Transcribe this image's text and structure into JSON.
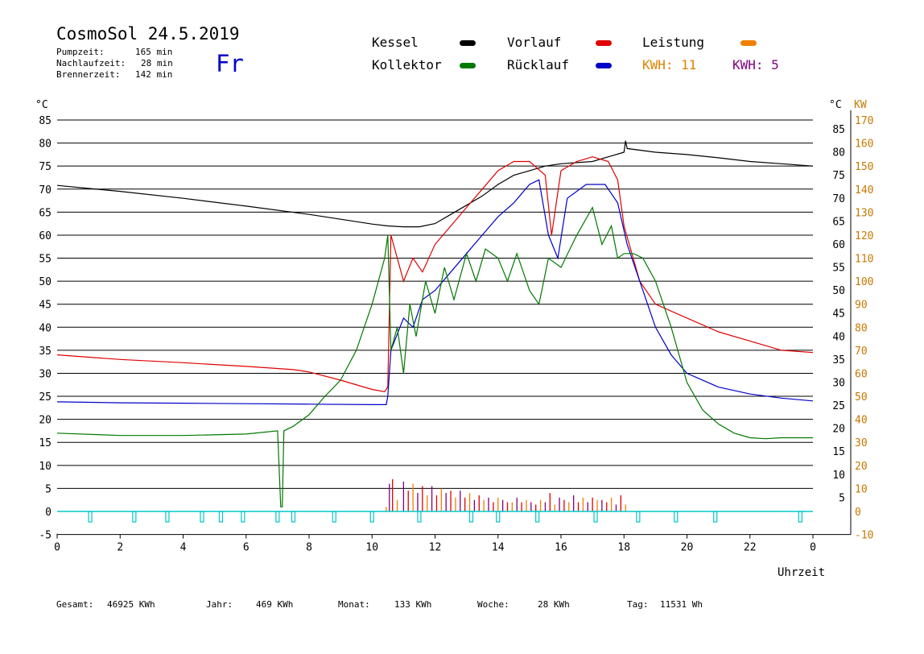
{
  "header": {
    "title": "CosmoSol 24.5.2019",
    "day": "Fr",
    "stats": [
      {
        "label": "Pumpzeit:",
        "value": "165 min"
      },
      {
        "label": "Nachlaufzeit:",
        "value": "28 min"
      },
      {
        "label": "Brennerzeit:",
        "value": "142 min"
      }
    ]
  },
  "legend": {
    "kessel": "Kessel",
    "vorlauf": "Vorlauf",
    "leistung": "Leistung",
    "kollektor": "Kollektor",
    "ruecklauf": "Rücklauf",
    "kwh1": "KWH: 11",
    "kwh2": "KWH: 5"
  },
  "colors": {
    "kessel": "#000000",
    "vorlauf": "#e00000",
    "leistung": "#f08000",
    "kollektor": "#007800",
    "ruecklauf": "#0000c8",
    "purple": "#800080",
    "pump": "#00c8c8",
    "right_kw": "#c87800"
  },
  "footer": [
    {
      "label": "Gesamt:",
      "value": "46925 KWh"
    },
    {
      "label": "Jahr:",
      "value": "469 KWh"
    },
    {
      "label": "Monat:",
      "value": "133 KWh"
    },
    {
      "label": "Woche:",
      "value": "28 KWh"
    },
    {
      "label": "Tag:",
      "value": "11531 Wh"
    }
  ],
  "chart_data": {
    "type": "line",
    "xlabel": "Uhrzeit",
    "left_unit": "°C",
    "right_unit_c": "°C",
    "right_unit_kw": "KW",
    "x_range": [
      0,
      24
    ],
    "y_range": [
      -5,
      85
    ],
    "kw_range": [
      -10,
      170
    ],
    "x_ticks": [
      "0",
      "2",
      "4",
      "6",
      "8",
      "10",
      "12",
      "14",
      "16",
      "18",
      "20",
      "22",
      "0"
    ],
    "left_ticks": [
      85,
      80,
      75,
      70,
      65,
      60,
      55,
      50,
      45,
      40,
      35,
      30,
      25,
      20,
      15,
      10,
      5,
      0,
      -5
    ],
    "right_ticks_c": [
      85,
      80,
      75,
      70,
      65,
      60,
      55,
      50,
      45,
      40,
      35,
      30,
      25,
      20,
      15,
      10,
      5
    ],
    "right_ticks_kw": [
      170,
      160,
      150,
      140,
      130,
      120,
      110,
      100,
      90,
      80,
      70,
      60,
      50,
      40,
      30,
      20,
      10,
      0,
      -10
    ],
    "gridlines": [
      85,
      80,
      75,
      70,
      65,
      60,
      55,
      50,
      45,
      40,
      35,
      30,
      25,
      20,
      15,
      10,
      5,
      0
    ],
    "series": [
      {
        "name": "Kessel",
        "key": "kessel",
        "points": [
          [
            0,
            70.8
          ],
          [
            2,
            69.5
          ],
          [
            4,
            68
          ],
          [
            6,
            66.3
          ],
          [
            8,
            64.5
          ],
          [
            10,
            62.4
          ],
          [
            10.5,
            62
          ],
          [
            11,
            61.8
          ],
          [
            11.5,
            61.8
          ],
          [
            12,
            62.5
          ],
          [
            12.5,
            64.5
          ],
          [
            13,
            66.5
          ],
          [
            13.5,
            68.5
          ],
          [
            14,
            71
          ],
          [
            14.5,
            73
          ],
          [
            15,
            74
          ],
          [
            15.5,
            75
          ],
          [
            16,
            75.5
          ],
          [
            17,
            76
          ],
          [
            17.5,
            77
          ],
          [
            18,
            78
          ],
          [
            18.05,
            80.5
          ],
          [
            18.1,
            78.8
          ],
          [
            19,
            78
          ],
          [
            20,
            77.5
          ],
          [
            21,
            76.8
          ],
          [
            22,
            76
          ],
          [
            23,
            75.5
          ],
          [
            24,
            75
          ]
        ]
      },
      {
        "name": "Vorlauf",
        "key": "vorlauf",
        "points": [
          [
            0,
            34
          ],
          [
            2,
            33
          ],
          [
            4,
            32.3
          ],
          [
            6,
            31.5
          ],
          [
            7.5,
            30.8
          ],
          [
            8,
            30.3
          ],
          [
            9,
            28.5
          ],
          [
            10,
            26.5
          ],
          [
            10.4,
            26
          ],
          [
            10.5,
            27
          ],
          [
            10.6,
            60
          ],
          [
            10.8,
            55
          ],
          [
            11,
            50
          ],
          [
            11.3,
            55
          ],
          [
            11.6,
            52
          ],
          [
            12,
            58
          ],
          [
            12.5,
            62
          ],
          [
            13,
            66
          ],
          [
            13.5,
            70
          ],
          [
            14,
            74
          ],
          [
            14.5,
            76
          ],
          [
            15,
            76
          ],
          [
            15.5,
            73
          ],
          [
            15.7,
            60
          ],
          [
            16,
            74
          ],
          [
            16.5,
            76
          ],
          [
            17,
            77
          ],
          [
            17.5,
            76
          ],
          [
            17.8,
            72
          ],
          [
            18,
            62
          ],
          [
            18.5,
            50
          ],
          [
            19,
            45
          ],
          [
            20,
            42
          ],
          [
            21,
            39
          ],
          [
            22,
            37
          ],
          [
            23,
            35
          ],
          [
            24,
            34.5
          ]
        ]
      },
      {
        "name": "Rücklauf",
        "key": "ruecklauf",
        "points": [
          [
            0,
            23.8
          ],
          [
            2,
            23.6
          ],
          [
            4,
            23.5
          ],
          [
            6,
            23.4
          ],
          [
            8,
            23.3
          ],
          [
            10,
            23.2
          ],
          [
            10.45,
            23.2
          ],
          [
            10.5,
            25
          ],
          [
            10.6,
            35
          ],
          [
            11,
            42
          ],
          [
            11.3,
            40
          ],
          [
            11.6,
            46
          ],
          [
            12,
            48
          ],
          [
            12.5,
            52
          ],
          [
            13,
            56
          ],
          [
            13.5,
            60
          ],
          [
            14,
            64
          ],
          [
            14.5,
            67
          ],
          [
            15,
            71
          ],
          [
            15.3,
            72
          ],
          [
            15.6,
            60
          ],
          [
            15.9,
            55
          ],
          [
            16.2,
            68
          ],
          [
            16.8,
            71
          ],
          [
            17.4,
            71
          ],
          [
            17.8,
            67
          ],
          [
            18.1,
            58
          ],
          [
            18.5,
            50
          ],
          [
            19,
            40
          ],
          [
            19.5,
            34
          ],
          [
            20,
            30
          ],
          [
            21,
            27
          ],
          [
            22,
            25.5
          ],
          [
            23,
            24.6
          ],
          [
            24,
            24
          ]
        ]
      },
      {
        "name": "Kollektor",
        "key": "kollektor",
        "points": [
          [
            0,
            17
          ],
          [
            2,
            16.5
          ],
          [
            4,
            16.5
          ],
          [
            6,
            16.8
          ],
          [
            7,
            17.5
          ],
          [
            7.1,
            1
          ],
          [
            7.15,
            1
          ],
          [
            7.2,
            17.5
          ],
          [
            7.5,
            18.5
          ],
          [
            8,
            21
          ],
          [
            8.5,
            25
          ],
          [
            9,
            28.5
          ],
          [
            9.5,
            35
          ],
          [
            10,
            45
          ],
          [
            10.4,
            55
          ],
          [
            10.5,
            60
          ],
          [
            10.6,
            35
          ],
          [
            10.8,
            40
          ],
          [
            11,
            30
          ],
          [
            11.2,
            45
          ],
          [
            11.4,
            38
          ],
          [
            11.7,
            50
          ],
          [
            12,
            43
          ],
          [
            12.3,
            53
          ],
          [
            12.6,
            46
          ],
          [
            13,
            56
          ],
          [
            13.3,
            50
          ],
          [
            13.6,
            57
          ],
          [
            14,
            55
          ],
          [
            14.3,
            50
          ],
          [
            14.6,
            56
          ],
          [
            15,
            48
          ],
          [
            15.3,
            45
          ],
          [
            15.6,
            55
          ],
          [
            16,
            53
          ],
          [
            16.5,
            60
          ],
          [
            17,
            66
          ],
          [
            17.3,
            58
          ],
          [
            17.6,
            62
          ],
          [
            17.8,
            55
          ],
          [
            18,
            56
          ],
          [
            18.3,
            56
          ],
          [
            18.6,
            55
          ],
          [
            19,
            50
          ],
          [
            19.5,
            40
          ],
          [
            20,
            28
          ],
          [
            20.5,
            22
          ],
          [
            21,
            19
          ],
          [
            21.5,
            17
          ],
          [
            22,
            16
          ],
          [
            22.5,
            15.8
          ],
          [
            23,
            16
          ],
          [
            24,
            16
          ]
        ]
      }
    ],
    "leistung_bars_x": [
      10.45,
      10.55,
      10.65,
      10.8,
      11,
      11.15,
      11.3,
      11.45,
      11.6,
      11.75,
      11.9,
      12.05,
      12.2,
      12.35,
      12.5,
      12.65,
      12.8,
      12.95,
      13.1,
      13.25,
      13.4,
      13.55,
      13.7,
      13.85,
      14,
      14.15,
      14.3,
      14.45,
      14.6,
      14.75,
      14.9,
      15.05,
      15.2,
      15.35,
      15.5,
      15.65,
      15.8,
      15.95,
      16.1,
      16.25,
      16.4,
      16.55,
      16.7,
      16.85,
      17,
      17.15,
      17.3,
      17.45,
      17.6,
      17.75,
      17.9,
      18.05
    ],
    "leistung_bars_kw": [
      2,
      12,
      14,
      5,
      13,
      9,
      12,
      8,
      11,
      7,
      11,
      7,
      10,
      8,
      9,
      6,
      9,
      6,
      8,
      5,
      7,
      5,
      6,
      4,
      6,
      5,
      4,
      4,
      6,
      4,
      5,
      4,
      3,
      5,
      4,
      8,
      3,
      6,
      5,
      4,
      7,
      4,
      6,
      4,
      6,
      5,
      5,
      4,
      6,
      3,
      7,
      3
    ],
    "pump_markers_x": [
      1.05,
      2.45,
      3.5,
      4.6,
      5.2,
      5.9,
      7.0,
      7.5,
      8.8,
      10.0,
      11.5,
      13.15,
      14.0,
      15.25,
      17.1,
      18.45,
      19.65,
      20.9,
      23.6
    ]
  }
}
